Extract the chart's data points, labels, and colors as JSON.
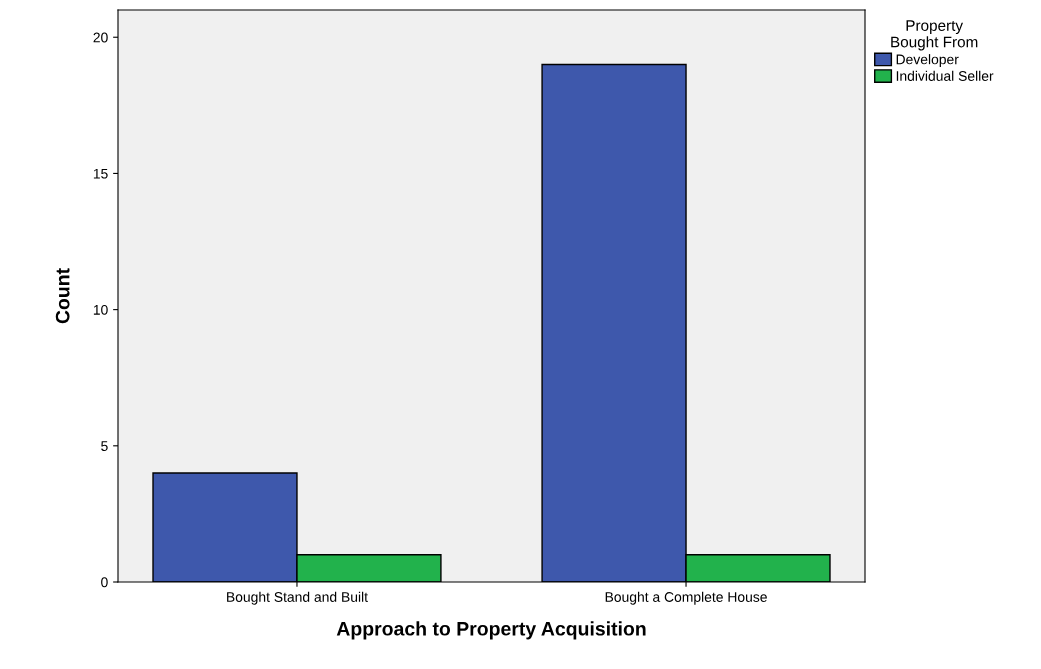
{
  "chart_data": {
    "type": "bar",
    "xlabel": "Approach to Property Acquisition",
    "ylabel": "Count",
    "legend_title": "Property\nBought From",
    "categories": [
      "Bought Stand and Built",
      "Bought a Complete House"
    ],
    "series": [
      {
        "name": "Developer",
        "color": "#3e58ac",
        "values": [
          4,
          19
        ]
      },
      {
        "name": "Individual Seller",
        "color": "#22b24c",
        "values": [
          1,
          1
        ]
      }
    ],
    "ylim": [
      0,
      21
    ],
    "yticks": [
      0,
      5,
      10,
      15,
      20
    ],
    "grid": false,
    "legend": "top right"
  }
}
